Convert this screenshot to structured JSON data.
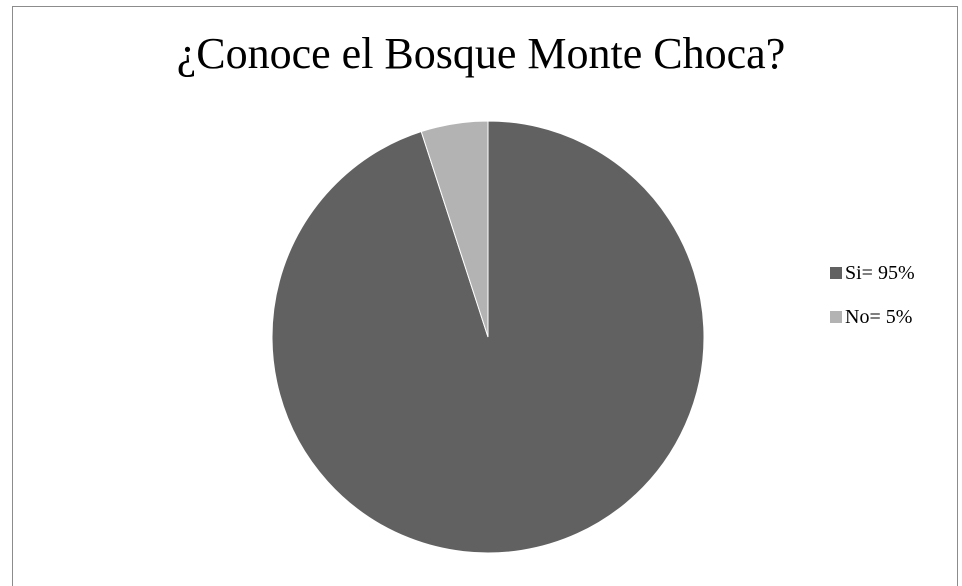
{
  "chart_data": {
    "type": "pie",
    "title": "¿Conoce el Bosque Monte Choca?",
    "slices": [
      {
        "label": "Si= 95%",
        "value": 95,
        "color": "#616161"
      },
      {
        "label": "No= 5%",
        "value": 5,
        "color": "#b3b3b3"
      }
    ],
    "start_angle_deg": 0,
    "direction": "clockwise",
    "legend_position": "right"
  }
}
